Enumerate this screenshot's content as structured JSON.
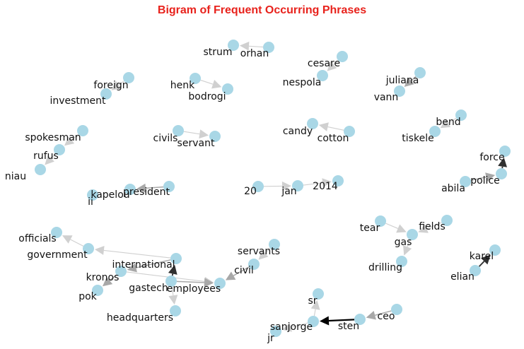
{
  "title": "Bigram of Frequent Occurring Phrases",
  "nodes": {
    "strum": "strum",
    "orhan": "orhan",
    "cesare": "cesare",
    "nespola": "nespola",
    "juliana": "juliana",
    "vann": "vann",
    "foreign": "foreign",
    "investment": "investment",
    "henk": "henk",
    "bodrogi": "bodrogi",
    "spokesman": "spokesman",
    "rufus": "rufus",
    "niau": "niau",
    "civils": "civils",
    "servant": "servant",
    "candy": "candy",
    "cotton": "cotton",
    "bend": "bend",
    "tiskele": "tiskele",
    "force": "force",
    "police": "police",
    "abila": "abila",
    "president": "president",
    "kapelou": "kapelou",
    "ii": "ii",
    "n20": "20",
    "jan": "jan",
    "n2014": "2014",
    "officials": "officials",
    "government": "government",
    "international": "international",
    "kronos": "kronos",
    "pok": "pok",
    "gastech": "gastech",
    "employees": "employees",
    "headquarters": "headquarters",
    "servants": "servants",
    "civil": "civil",
    "tear": "tear",
    "fields": "fields",
    "gas": "gas",
    "drilling": "drilling",
    "karel": "karel",
    "elian": "elian",
    "sr": "sr",
    "sanjorge": "sanjorge",
    "jr": "jr",
    "sten": "sten",
    "ceo": "ceo"
  },
  "edges": [
    {
      "from": "orhan",
      "to": "strum",
      "weight": 1
    },
    {
      "from": "cesare",
      "to": "nespola",
      "weight": 1
    },
    {
      "from": "juliana",
      "to": "vann",
      "weight": 2
    },
    {
      "from": "foreign",
      "to": "investment",
      "weight": 1
    },
    {
      "from": "henk",
      "to": "bodrogi",
      "weight": 1
    },
    {
      "from": "spokesman",
      "to": "rufus",
      "weight": 1
    },
    {
      "from": "rufus",
      "to": "niau",
      "weight": 1
    },
    {
      "from": "civils",
      "to": "servant",
      "weight": 1
    },
    {
      "from": "cotton",
      "to": "candy",
      "weight": 1
    },
    {
      "from": "bend",
      "to": "tiskele",
      "weight": 1
    },
    {
      "from": "police",
      "to": "force",
      "weight": 3
    },
    {
      "from": "abila",
      "to": "police",
      "weight": 2
    },
    {
      "from": "president",
      "to": "kapelou",
      "weight": 2
    },
    {
      "from": "n20",
      "to": "jan",
      "weight": 1
    },
    {
      "from": "jan",
      "to": "n2014",
      "weight": 1
    },
    {
      "from": "government",
      "to": "officials",
      "weight": 1
    },
    {
      "from": "international",
      "to": "government",
      "weight": 1
    },
    {
      "from": "gastech",
      "to": "international",
      "weight": 3
    },
    {
      "from": "kronos",
      "to": "pok",
      "weight": 2
    },
    {
      "from": "international",
      "to": "kronos",
      "weight": 2
    },
    {
      "from": "kronos",
      "to": "employees",
      "weight": 1
    },
    {
      "from": "gastech",
      "to": "employees",
      "weight": 2
    },
    {
      "from": "gastech",
      "to": "headquarters",
      "weight": 1
    },
    {
      "from": "civil",
      "to": "employees",
      "weight": 2
    },
    {
      "from": "servants",
      "to": "civil",
      "weight": 1
    },
    {
      "from": "tear",
      "to": "gas",
      "weight": 1
    },
    {
      "from": "fields",
      "to": "gas",
      "weight": 1
    },
    {
      "from": "gas",
      "to": "drilling",
      "weight": 1
    },
    {
      "from": "elian",
      "to": "karel",
      "weight": 3
    },
    {
      "from": "sanjorge",
      "to": "sr",
      "weight": 1
    },
    {
      "from": "sanjorge",
      "to": "jr",
      "weight": 1
    },
    {
      "from": "sten",
      "to": "sanjorge",
      "weight": 4
    },
    {
      "from": "ceo",
      "to": "sten",
      "weight": 2
    }
  ]
}
